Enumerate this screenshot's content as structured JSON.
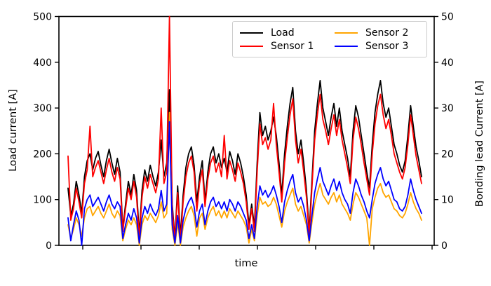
{
  "chart_data": {
    "type": "line",
    "title": "",
    "xlabel": "time",
    "ylabel_left": "Load current [A]",
    "ylabel_right": "Bonding lead Current [A]",
    "ylim_left": [
      0,
      500
    ],
    "ylim_right": [
      0,
      50
    ],
    "yticks_left": [
      0,
      100,
      200,
      300,
      400,
      500
    ],
    "yticks_right": [
      0,
      10,
      20,
      30,
      40,
      50
    ],
    "x_tick_count": 7,
    "x_tick_labels": [],
    "grid": false,
    "legend_position": "upper center",
    "legend_columns": 2,
    "series": [
      {
        "name": "Load",
        "color": "#000000",
        "axis": "left",
        "values": [
          125,
          65,
          90,
          140,
          110,
          70,
          150,
          185,
          200,
          165,
          190,
          205,
          175,
          150,
          185,
          210,
          180,
          155,
          190,
          160,
          35,
          90,
          140,
          110,
          155,
          120,
          25,
          120,
          165,
          140,
          175,
          150,
          130,
          160,
          230,
          150,
          180,
          340,
          90,
          15,
          130,
          20,
          110,
          170,
          200,
          215,
          175,
          95,
          150,
          185,
          95,
          160,
          200,
          215,
          180,
          200,
          170,
          190,
          160,
          205,
          185,
          155,
          200,
          180,
          150,
          110,
          45,
          90,
          40,
          180,
          290,
          240,
          260,
          230,
          250,
          280,
          240,
          180,
          110,
          200,
          260,
          310,
          345,
          250,
          200,
          230,
          180,
          120,
          30,
          140,
          250,
          310,
          360,
          300,
          270,
          240,
          280,
          310,
          260,
          300,
          250,
          220,
          190,
          150,
          250,
          305,
          280,
          240,
          200,
          160,
          125,
          220,
          290,
          330,
          360,
          310,
          280,
          300,
          260,
          220,
          200,
          175,
          160,
          185,
          240,
          305,
          260,
          215,
          185,
          150
        ]
      },
      {
        "name": "Sensor 1",
        "color": "#ff0000",
        "axis": "right",
        "values": [
          19.5,
          5.5,
          8,
          12.5,
          9.5,
          6,
          13.5,
          16.5,
          26,
          15,
          17,
          18.5,
          16,
          13.5,
          16.5,
          19,
          16,
          14,
          17,
          14.5,
          3,
          8,
          12.5,
          10,
          14,
          10.5,
          1.5,
          10.5,
          15,
          12.5,
          15.5,
          13.5,
          11.5,
          14.5,
          30,
          13.5,
          16,
          50,
          8,
          1,
          11.5,
          1,
          9.5,
          15,
          18,
          19.5,
          16,
          7.5,
          13.5,
          16.5,
          8.5,
          14.5,
          18,
          19.5,
          16,
          18,
          15,
          24,
          14.5,
          18.5,
          16.5,
          14,
          18,
          16,
          13.5,
          9.5,
          3.5,
          8,
          3,
          16,
          26.5,
          22,
          23.5,
          21,
          23,
          31,
          22,
          16,
          9.5,
          18,
          23.5,
          28.5,
          32,
          23,
          18,
          21,
          16,
          10.5,
          2,
          12.5,
          23,
          28.5,
          33,
          27.5,
          25,
          22,
          25.5,
          28.5,
          24,
          27.5,
          23,
          20,
          17,
          13.5,
          23,
          28,
          25.5,
          22,
          18,
          14.5,
          11,
          20,
          26.5,
          30.5,
          33,
          28.5,
          25.5,
          27.5,
          24,
          20,
          18,
          16,
          14.5,
          17,
          22,
          28.5,
          24,
          19.5,
          16.5,
          13.5
        ]
      },
      {
        "name": "Sensor 2",
        "color": "#ffa500",
        "axis": "right",
        "values": [
          4.5,
          1.5,
          3.5,
          6,
          4.5,
          2,
          6,
          8,
          8.5,
          6.5,
          7.5,
          8.5,
          7,
          6,
          7.5,
          9,
          7,
          6,
          7.5,
          6.5,
          1,
          3.5,
          5.5,
          4.5,
          6,
          4.5,
          0,
          4.5,
          6.5,
          5.5,
          7,
          6,
          5,
          6.5,
          9.5,
          6,
          7,
          29,
          3.5,
          0,
          5,
          0,
          4,
          6,
          7.5,
          8.5,
          6.5,
          2,
          6,
          7,
          3.5,
          6,
          7.5,
          8.5,
          6.5,
          7.5,
          6,
          7.5,
          6,
          8,
          7,
          6,
          7.5,
          6.5,
          5.5,
          4,
          0.5,
          3.5,
          1,
          6.5,
          10.5,
          9,
          9.5,
          8.5,
          9,
          10.5,
          9,
          6.5,
          4,
          7.5,
          9.5,
          11,
          12.5,
          9,
          7.5,
          8.5,
          6.5,
          4.5,
          0.5,
          5,
          9,
          11.5,
          13.5,
          11,
          10,
          9,
          10.5,
          11.5,
          9.5,
          11,
          9,
          8,
          7,
          5.5,
          9,
          11.5,
          10.5,
          9,
          7.5,
          6,
          0,
          8,
          10.5,
          12.5,
          13.5,
          11.5,
          10.5,
          11,
          9.5,
          8,
          7.5,
          6.5,
          6,
          7,
          9,
          11.5,
          9.5,
          8,
          7,
          5.5
        ]
      },
      {
        "name": "Sensor 3",
        "color": "#0000ff",
        "axis": "right",
        "values": [
          6,
          1,
          4.5,
          7.5,
          5.5,
          0,
          8,
          10,
          11,
          8.5,
          9.5,
          10.5,
          9,
          7.5,
          9.5,
          11,
          9,
          8,
          9.5,
          8.5,
          1.5,
          4.5,
          7,
          5.5,
          8,
          6,
          0.5,
          6,
          8.5,
          7,
          9,
          7.5,
          6.5,
          8,
          12,
          7.5,
          9,
          27,
          4.5,
          0.5,
          6.5,
          0.5,
          5.5,
          8,
          9.5,
          10.5,
          8.5,
          4,
          7.5,
          9,
          4.5,
          7.5,
          9.5,
          10.5,
          8.5,
          9.5,
          8,
          9.5,
          7.5,
          10,
          9,
          7.5,
          9.5,
          8.5,
          7,
          5.5,
          1.5,
          4.5,
          1.5,
          8.5,
          13,
          11,
          12,
          10.5,
          11.5,
          13,
          11,
          8.5,
          5,
          9.5,
          12,
          14,
          15.5,
          11.5,
          9.5,
          10.5,
          8.5,
          5.5,
          1,
          6.5,
          11.5,
          14.5,
          17,
          14,
          12.5,
          11,
          13,
          14.5,
          12,
          14,
          11.5,
          10,
          9,
          7,
          11.5,
          14.5,
          13,
          11,
          9.5,
          7.5,
          6,
          10,
          13.5,
          15.5,
          17,
          14.5,
          13,
          14,
          12,
          10,
          9.5,
          8,
          7.5,
          8.5,
          11,
          14.5,
          12,
          10,
          8.5,
          7
        ]
      }
    ]
  }
}
